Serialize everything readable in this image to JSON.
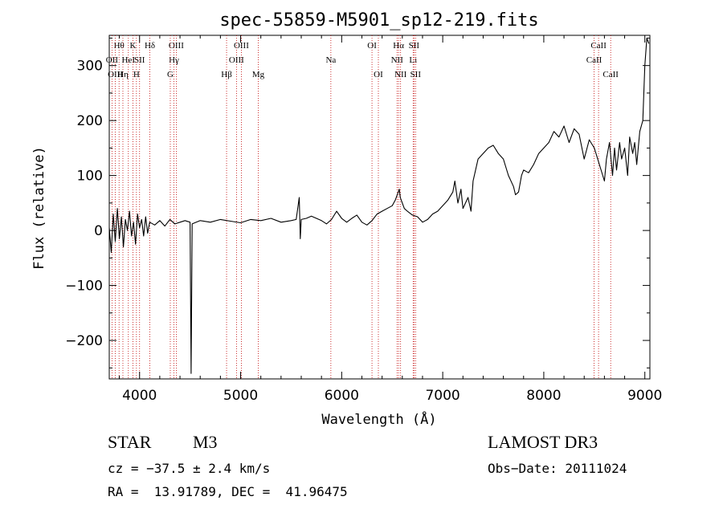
{
  "chart_data": {
    "type": "line",
    "title": "spec-55859-M5901_sp12-219.fits",
    "xlabel": "Wavelength (Å)",
    "ylabel": "Flux (relative)",
    "xlim": [
      3700,
      9050
    ],
    "ylim": [
      -270,
      355
    ],
    "x_ticks": [
      4000,
      5000,
      6000,
      7000,
      8000,
      9000
    ],
    "y_ticks": [
      -200,
      -100,
      0,
      100,
      200,
      300
    ],
    "x_tick_labels": [
      "4000",
      "5000",
      "6000",
      "7000",
      "8000",
      "9000"
    ],
    "y_tick_labels": [
      "−200",
      "−100",
      "0",
      "100",
      "200",
      "300"
    ],
    "grid": false,
    "series": [
      {
        "name": "flux",
        "x": [
          3700,
          3720,
          3740,
          3760,
          3780,
          3800,
          3820,
          3840,
          3860,
          3880,
          3900,
          3920,
          3940,
          3960,
          3980,
          4000,
          4020,
          4040,
          4060,
          4080,
          4100,
          4150,
          4200,
          4250,
          4300,
          4350,
          4400,
          4450,
          4500,
          4510,
          4520,
          4600,
          4700,
          4800,
          4900,
          5000,
          5100,
          5200,
          5300,
          5400,
          5500,
          5550,
          5580,
          5590,
          5600,
          5650,
          5700,
          5800,
          5850,
          5900,
          5950,
          6000,
          6050,
          6100,
          6150,
          6200,
          6250,
          6300,
          6350,
          6400,
          6450,
          6500,
          6530,
          6550,
          6570,
          6580,
          6600,
          6620,
          6650,
          6700,
          6750,
          6800,
          6850,
          6900,
          6950,
          7000,
          7050,
          7100,
          7120,
          7150,
          7180,
          7200,
          7250,
          7280,
          7300,
          7350,
          7400,
          7450,
          7500,
          7550,
          7600,
          7650,
          7700,
          7720,
          7750,
          7780,
          7800,
          7850,
          7900,
          7950,
          8000,
          8050,
          8100,
          8150,
          8200,
          8250,
          8300,
          8350,
          8400,
          8450,
          8500,
          8550,
          8600,
          8620,
          8650,
          8680,
          8700,
          8720,
          8750,
          8770,
          8800,
          8830,
          8850,
          8880,
          8900,
          8920,
          8950,
          8980,
          9000,
          9020,
          9040
        ],
        "y": [
          5,
          -40,
          30,
          -20,
          40,
          -15,
          25,
          -30,
          20,
          0,
          35,
          -10,
          15,
          -25,
          30,
          5,
          20,
          -10,
          25,
          -5,
          15,
          10,
          18,
          8,
          20,
          12,
          15,
          18,
          15,
          -260,
          12,
          18,
          15,
          20,
          17,
          14,
          20,
          18,
          22,
          15,
          18,
          20,
          60,
          -15,
          20,
          22,
          26,
          18,
          12,
          20,
          35,
          22,
          15,
          22,
          28,
          15,
          10,
          18,
          30,
          35,
          40,
          45,
          55,
          65,
          75,
          60,
          50,
          40,
          35,
          28,
          25,
          15,
          20,
          30,
          35,
          45,
          55,
          70,
          90,
          50,
          75,
          40,
          60,
          35,
          90,
          130,
          140,
          150,
          155,
          140,
          130,
          100,
          80,
          65,
          70,
          100,
          110,
          105,
          120,
          140,
          150,
          160,
          180,
          170,
          190,
          160,
          185,
          175,
          130,
          165,
          150,
          120,
          90,
          130,
          160,
          100,
          150,
          110,
          160,
          130,
          150,
          100,
          170,
          140,
          160,
          120,
          180,
          200,
          300,
          350,
          340
        ]
      }
    ],
    "line_markers": [
      {
        "label": "Hθ",
        "x": 3797,
        "row": 0
      },
      {
        "label": "OII",
        "x": 3727,
        "row": 1
      },
      {
        "label": "OIII",
        "x": 3760,
        "row": 2
      },
      {
        "label": "Hη",
        "x": 3835,
        "row": 2
      },
      {
        "label": "HeI",
        "x": 3889,
        "row": 1
      },
      {
        "label": "K",
        "x": 3934,
        "row": 0
      },
      {
        "label": "SII",
        "x": 4000,
        "row": 1
      },
      {
        "label": "H",
        "x": 3969,
        "row": 2
      },
      {
        "label": "Hδ",
        "x": 4102,
        "row": 0
      },
      {
        "label": "OIII",
        "x": 4363,
        "row": 0
      },
      {
        "label": "Hγ",
        "x": 4340,
        "row": 1
      },
      {
        "label": "G",
        "x": 4304,
        "row": 2
      },
      {
        "label": "Hβ",
        "x": 4861,
        "row": 2
      },
      {
        "label": "OIII",
        "x": 5007,
        "row": 0
      },
      {
        "label": "OIII",
        "x": 4959,
        "row": 1
      },
      {
        "label": "Mg",
        "x": 5175,
        "row": 2
      },
      {
        "label": "Na",
        "x": 5893,
        "row": 1
      },
      {
        "label": "OI",
        "x": 6300,
        "row": 0
      },
      {
        "label": "OI",
        "x": 6363,
        "row": 2
      },
      {
        "label": "Hα",
        "x": 6563,
        "row": 0
      },
      {
        "label": "SII",
        "x": 6716,
        "row": 0
      },
      {
        "label": "NII",
        "x": 6548,
        "row": 1
      },
      {
        "label": "Li",
        "x": 6707,
        "row": 1
      },
      {
        "label": "NII",
        "x": 6583,
        "row": 2
      },
      {
        "label": "SII",
        "x": 6731,
        "row": 2
      },
      {
        "label": "CaII",
        "x": 8542,
        "row": 0
      },
      {
        "label": "CaII",
        "x": 8498,
        "row": 1
      },
      {
        "label": "CaII",
        "x": 8662,
        "row": 2
      }
    ]
  },
  "info": {
    "class": "STAR",
    "subclass": "M3",
    "survey": "LAMOST DR3",
    "cz": "cz = −37.5 ± 2.4 km/s",
    "obs_date": "Obs−Date: 20111024",
    "coords": "RA =  13.91789, DEC =  41.96475"
  }
}
